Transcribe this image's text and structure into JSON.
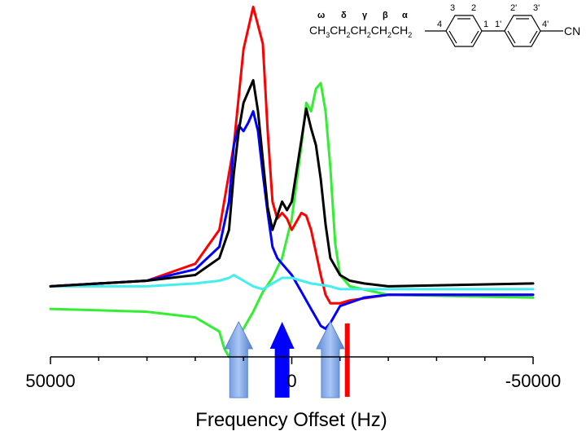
{
  "chart_data": {
    "type": "line",
    "title": "",
    "xlabel": "Frequency Offset (Hz)",
    "ylabel": "",
    "xlim": [
      50000,
      -50000
    ],
    "ylim": [
      -0.25,
      1.0
    ],
    "x_ticks": [
      50000,
      0,
      -50000
    ],
    "x_tick_labels": [
      "50000",
      "0",
      "-50000"
    ],
    "x_minor_step": 10000,
    "grid": false,
    "legend": "none",
    "series": [
      {
        "color": "#ff0000",
        "x": [
          50000,
          30000,
          20000,
          15000,
          12000,
          10000,
          8000,
          6000,
          5000,
          4000,
          3000,
          2000,
          1000,
          0,
          -2000,
          -3000,
          -4000,
          -5000,
          -6000,
          -7000,
          -8000,
          -10000,
          -12000,
          -20000,
          -50000
        ],
        "y": [
          0.0,
          0.02,
          0.08,
          0.2,
          0.5,
          0.84,
          0.99,
          0.86,
          0.55,
          0.3,
          0.24,
          0.26,
          0.24,
          0.2,
          0.26,
          0.25,
          0.2,
          0.12,
          0.04,
          -0.03,
          -0.06,
          -0.06,
          -0.05,
          -0.03,
          -0.03
        ]
      },
      {
        "color": "#0000ff",
        "x": [
          50000,
          30000,
          20000,
          15000,
          13000,
          12000,
          11000,
          10000,
          9000,
          8000,
          7000,
          6000,
          5000,
          4000,
          3000,
          2000,
          0,
          -2000,
          -4000,
          -5000,
          -6000,
          -7000,
          -8000,
          -10000,
          -15000,
          -20000,
          -50000
        ],
        "y": [
          0.0,
          0.02,
          0.06,
          0.14,
          0.3,
          0.5,
          0.57,
          0.55,
          0.58,
          0.62,
          0.55,
          0.4,
          0.26,
          0.14,
          0.1,
          0.08,
          0.04,
          -0.02,
          -0.08,
          -0.11,
          -0.14,
          -0.15,
          -0.13,
          -0.07,
          -0.04,
          -0.03,
          -0.03
        ]
      },
      {
        "color": "#33ee33",
        "x": [
          50000,
          30000,
          20000,
          15000,
          14000,
          13000,
          12000,
          11000,
          10000,
          9000,
          8000,
          6000,
          4000,
          2000,
          0,
          -2000,
          -3000,
          -4000,
          -5000,
          -6000,
          -7000,
          -8000,
          -9000,
          -10000,
          -12000,
          -20000,
          -50000
        ],
        "y": [
          -0.08,
          -0.09,
          -0.11,
          -0.16,
          -0.22,
          -0.25,
          -0.2,
          -0.18,
          -0.15,
          -0.12,
          -0.09,
          -0.02,
          0.03,
          0.1,
          0.24,
          0.5,
          0.65,
          0.62,
          0.7,
          0.72,
          0.62,
          0.42,
          0.15,
          0.04,
          0.0,
          -0.03,
          -0.04
        ]
      },
      {
        "color": "#000000",
        "x": [
          50000,
          30000,
          20000,
          15000,
          13000,
          12000,
          11000,
          10000,
          9000,
          8000,
          7000,
          6000,
          5000,
          4000,
          3000,
          2000,
          1000,
          0,
          -2000,
          -3000,
          -4000,
          -5000,
          -6000,
          -7000,
          -8000,
          -10000,
          -12000,
          -15000,
          -20000,
          -50000
        ],
        "y": [
          0.0,
          0.02,
          0.04,
          0.1,
          0.2,
          0.4,
          0.55,
          0.65,
          0.69,
          0.73,
          0.62,
          0.45,
          0.28,
          0.2,
          0.25,
          0.3,
          0.27,
          0.3,
          0.52,
          0.63,
          0.56,
          0.5,
          0.38,
          0.22,
          0.1,
          0.04,
          0.02,
          0.01,
          0.0,
          0.01
        ]
      },
      {
        "color": "#44eeee",
        "x": [
          50000,
          30000,
          20000,
          15000,
          13000,
          12000,
          10000,
          8000,
          6000,
          4000,
          2000,
          0,
          -2000,
          -4000,
          -8000,
          -10000,
          -15000,
          -20000,
          -50000
        ],
        "y": [
          0.0,
          0.0,
          0.01,
          0.02,
          0.03,
          0.04,
          0.02,
          0.0,
          -0.01,
          0.01,
          0.03,
          0.03,
          0.02,
          0.01,
          0.0,
          -0.01,
          -0.01,
          -0.01,
          -0.01
        ]
      }
    ],
    "arrows": [
      {
        "x": 11000,
        "color": "#7aa5e8",
        "style": "gradient"
      },
      {
        "x": 2000,
        "color": "#0000ff",
        "style": "solid"
      },
      {
        "x": -8000,
        "color": "#7aa5e8",
        "style": "gradient"
      },
      {
        "x": -11500,
        "color": "#ff0000",
        "style": "bar"
      }
    ]
  },
  "molecule": {
    "greek_labels": [
      "ω",
      "δ",
      "γ",
      "β",
      "α"
    ],
    "formula_text": "CH3CH2CH2CH2CH2",
    "formula_main": "CH",
    "formula_parts": [
      {
        "sub": "3",
        "text": "CH"
      },
      {
        "sub": "2",
        "text": "CH"
      },
      {
        "sub": "2",
        "text": "CH"
      },
      {
        "sub": "2",
        "text": "CH"
      },
      {
        "sub": "2",
        "text": ""
      }
    ],
    "ring_labels": [
      "3",
      "2",
      "4",
      "1",
      "2'",
      "3'",
      "1'",
      "4'"
    ],
    "substituent": "CN"
  }
}
